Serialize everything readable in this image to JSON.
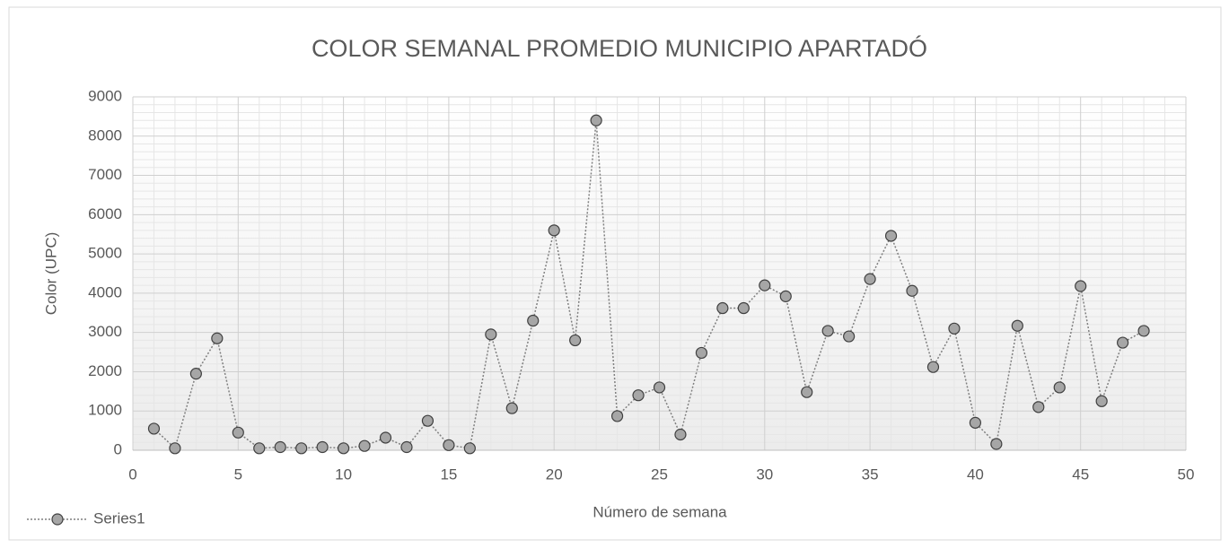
{
  "chart_data": {
    "type": "line",
    "title": "COLOR SEMANAL PROMEDIO MUNICIPIO APARTADÓ",
    "x_label": "Número de semana",
    "y_label": "Color (UPC)",
    "x": [
      1,
      2,
      3,
      4,
      5,
      6,
      7,
      8,
      9,
      10,
      11,
      12,
      13,
      14,
      15,
      16,
      17,
      18,
      19,
      20,
      21,
      22,
      23,
      24,
      25,
      26,
      27,
      28,
      29,
      30,
      31,
      32,
      33,
      34,
      35,
      36,
      37,
      38,
      39,
      40,
      41,
      42,
      43,
      44,
      45,
      46,
      47,
      48
    ],
    "series": [
      {
        "name": "Series1",
        "color": "#a6a6a6",
        "values": [
          550,
          50,
          1950,
          2850,
          450,
          50,
          80,
          50,
          80,
          50,
          110,
          320,
          80,
          750,
          130,
          50,
          2950,
          1070,
          3300,
          5600,
          2800,
          8400,
          870,
          1400,
          1600,
          400,
          2480,
          3620,
          3620,
          4200,
          3920,
          1480,
          3040,
          2900,
          4360,
          5460,
          4060,
          2120,
          3100,
          700,
          160,
          3170,
          1100,
          1600,
          4180,
          1250,
          2740,
          3040
        ]
      }
    ],
    "xlim": [
      0,
      50
    ],
    "xticks": [
      0,
      5,
      10,
      15,
      20,
      25,
      30,
      35,
      40,
      45,
      50
    ],
    "ylim": [
      0,
      9000
    ],
    "yticks": [
      0,
      1000,
      2000,
      3000,
      4000,
      5000,
      6000,
      7000,
      8000,
      9000
    ],
    "grid": true,
    "minor_grid": true,
    "legend": "bottom-left"
  }
}
